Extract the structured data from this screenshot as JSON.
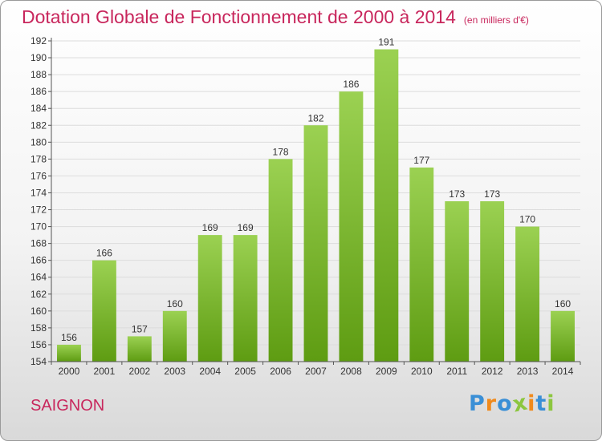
{
  "chart_data": {
    "type": "bar",
    "title": "Dotation Globale de Fonctionnement de 2000 à 2014",
    "subtitle": "(en milliers d'€)",
    "categories": [
      "2000",
      "2001",
      "2002",
      "2003",
      "2004",
      "2005",
      "2006",
      "2007",
      "2008",
      "2009",
      "2010",
      "2011",
      "2012",
      "2013",
      "2014"
    ],
    "values": [
      156,
      166,
      157,
      160,
      169,
      169,
      178,
      182,
      186,
      191,
      177,
      173,
      173,
      170,
      160
    ],
    "ylim": [
      154,
      192
    ],
    "yticks": [
      154,
      156,
      158,
      160,
      162,
      164,
      166,
      168,
      170,
      172,
      174,
      176,
      178,
      180,
      182,
      184,
      186,
      188,
      190,
      192
    ],
    "grid": true,
    "bar_color_top": "#9bd152",
    "bar_color_bottom": "#5e9c12"
  },
  "commune": "SAIGNON",
  "logo": {
    "text": "Proxiti",
    "letters": [
      {
        "ch": "P",
        "color": "#3a8fd6"
      },
      {
        "ch": "r",
        "color": "#f08a1c"
      },
      {
        "ch": "o",
        "color": "#3a8fd6"
      },
      {
        "ch": "x",
        "color": "#8cc63f"
      },
      {
        "ch": "i",
        "color": "#f08a1c"
      },
      {
        "ch": "t",
        "color": "#3a8fd6"
      },
      {
        "ch": "i",
        "color": "#8cc63f"
      }
    ]
  }
}
